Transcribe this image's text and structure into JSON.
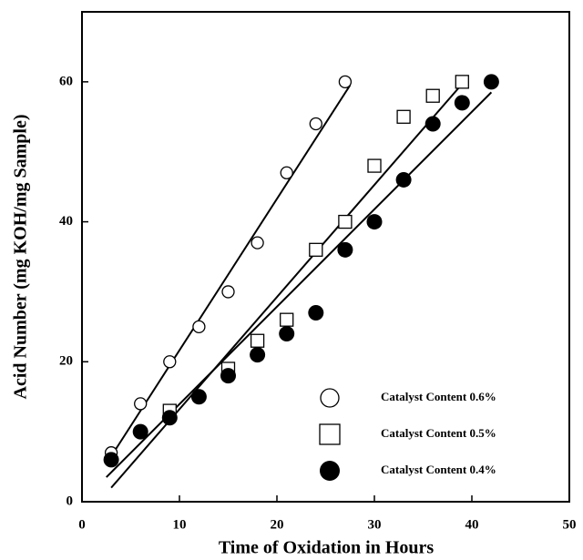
{
  "chart_data": {
    "type": "scatter",
    "x_label": "Time of Oxidation in Hours",
    "y_label": "Acid Number (mg KOH/mg Sample)",
    "xlim": [
      0,
      50
    ],
    "xticks": [
      0,
      10,
      20,
      30,
      40,
      50
    ],
    "ylim": [
      0,
      70
    ],
    "yticks": [
      0,
      20,
      40,
      60
    ],
    "legend": "lower right",
    "series": [
      {
        "name": "Catalyst Content 0.6%",
        "marker": "open-circle",
        "color": "#000000",
        "x": [
          3,
          6,
          9,
          12,
          15,
          18,
          21,
          24,
          27
        ],
        "values": [
          7,
          14,
          20,
          25,
          30,
          37,
          47,
          54,
          60
        ],
        "fit": {
          "x": [
            3,
            27.5
          ],
          "values": [
            6.5,
            59.5
          ]
        }
      },
      {
        "name": "Catalyst Content 0.5%",
        "marker": "open-square",
        "color": "#000000",
        "x": [
          9,
          15,
          18,
          21,
          24,
          27,
          30,
          33,
          36,
          39
        ],
        "values": [
          13,
          19,
          23,
          26,
          36,
          40,
          48,
          55,
          58,
          60
        ],
        "fit": {
          "x": [
            3,
            39.5
          ],
          "values": [
            2,
            60.5
          ]
        }
      },
      {
        "name": "Catalyst Content 0.4%",
        "marker": "filled-circle",
        "color": "#000000",
        "x": [
          3,
          6,
          9,
          12,
          15,
          18,
          21,
          24,
          27,
          30,
          33,
          36,
          39,
          42
        ],
        "values": [
          6,
          10,
          12,
          15,
          18,
          21,
          24,
          27,
          36,
          40,
          46,
          54,
          57,
          60
        ],
        "fit": {
          "x": [
            2.5,
            42
          ],
          "values": [
            3.5,
            58.5
          ]
        }
      }
    ]
  }
}
